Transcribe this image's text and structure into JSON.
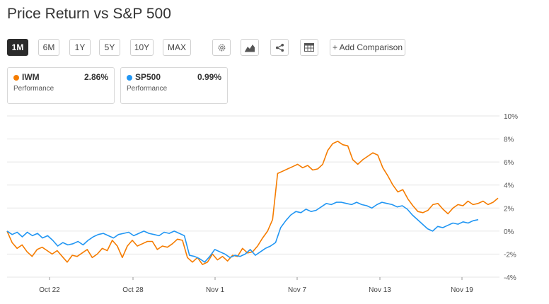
{
  "page": {
    "title": "Price Return vs S&P 500"
  },
  "toolbar": {
    "ranges": [
      "1M",
      "6M",
      "1Y",
      "5Y",
      "10Y",
      "MAX"
    ],
    "active_range": "1M",
    "add_comparison_label": "+ Add Comparison",
    "icons": [
      "gear-icon",
      "mountain-chart-icon",
      "share-icon",
      "table-icon"
    ]
  },
  "cards": [
    {
      "ticker": "IWM",
      "value": "2.86%",
      "label": "Performance",
      "color": "#f57c00"
    },
    {
      "ticker": "SP500",
      "value": "0.99%",
      "label": "Performance",
      "color": "#2196f3"
    }
  ],
  "chart_data": {
    "type": "line",
    "x_tick_labels": [
      "Oct 22",
      "Oct 28",
      "Nov 1",
      "Nov 7",
      "Nov 13",
      "Nov 19"
    ],
    "y_tick_labels": [
      "10%",
      "8%",
      "6%",
      "4%",
      "2%",
      "0%",
      "-2%",
      "-4%"
    ],
    "ylim": [
      -4,
      10
    ],
    "grid": true,
    "series": [
      {
        "name": "IWM",
        "color": "#f57c00",
        "values": [
          0.0,
          -1.0,
          -1.5,
          -1.2,
          -1.8,
          -2.2,
          -1.6,
          -1.4,
          -1.7,
          -2.0,
          -1.7,
          -2.2,
          -2.7,
          -2.1,
          -2.2,
          -1.9,
          -1.6,
          -2.3,
          -2.0,
          -1.5,
          -1.7,
          -0.8,
          -1.3,
          -2.3,
          -1.3,
          -0.8,
          -1.3,
          -1.1,
          -0.9,
          -0.9,
          -1.6,
          -1.3,
          -1.4,
          -1.1,
          -0.7,
          -0.8,
          -2.3,
          -2.7,
          -2.3,
          -2.9,
          -2.7,
          -2.0,
          -2.5,
          -2.2,
          -2.6,
          -2.1,
          -2.2,
          -1.5,
          -1.9,
          -1.8,
          -1.3,
          -0.6,
          0.0,
          1.0,
          5.0,
          5.2,
          5.4,
          5.6,
          5.8,
          5.5,
          5.7,
          5.3,
          5.4,
          5.8,
          7.0,
          7.6,
          7.8,
          7.5,
          7.4,
          6.2,
          5.8,
          6.2,
          6.5,
          6.8,
          6.6,
          5.5,
          4.8,
          4.0,
          3.4,
          3.6,
          2.8,
          2.2,
          1.7,
          1.6,
          1.8,
          2.3,
          2.4,
          1.9,
          1.5,
          2.0,
          2.3,
          2.2,
          2.6,
          2.3,
          2.4,
          2.6,
          2.3,
          2.5,
          2.86
        ]
      },
      {
        "name": "SP500",
        "color": "#2196f3",
        "values": [
          0.0,
          -0.3,
          -0.1,
          -0.5,
          -0.1,
          -0.4,
          -0.2,
          -0.6,
          -0.4,
          -0.8,
          -1.3,
          -1.0,
          -1.2,
          -1.1,
          -0.9,
          -1.2,
          -0.8,
          -0.5,
          -0.3,
          -0.2,
          -0.4,
          -0.6,
          -0.3,
          -0.2,
          -0.1,
          -0.4,
          -0.2,
          0.0,
          -0.2,
          -0.3,
          -0.4,
          -0.1,
          -0.2,
          0.0,
          -0.2,
          -0.4,
          -2.1,
          -2.2,
          -2.4,
          -2.7,
          -2.2,
          -1.6,
          -1.8,
          -2.0,
          -2.3,
          -2.1,
          -2.2,
          -2.0,
          -1.6,
          -2.1,
          -1.8,
          -1.5,
          -1.3,
          -1.0,
          0.3,
          0.9,
          1.4,
          1.7,
          1.6,
          1.9,
          1.7,
          1.8,
          2.1,
          2.4,
          2.3,
          2.5,
          2.5,
          2.4,
          2.3,
          2.5,
          2.3,
          2.2,
          2.0,
          2.3,
          2.5,
          2.4,
          2.3,
          2.1,
          2.2,
          1.9,
          1.4,
          1.0,
          0.6,
          0.2,
          0.0,
          0.4,
          0.3,
          0.5,
          0.7,
          0.6,
          0.8,
          0.7,
          0.9,
          0.99
        ]
      }
    ]
  }
}
